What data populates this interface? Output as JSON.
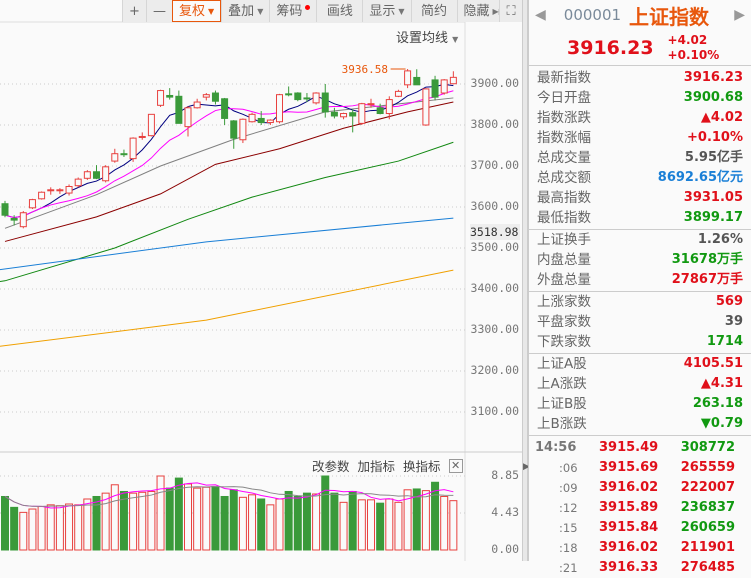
{
  "toolbar": {
    "items": [
      {
        "label": "+"
      },
      {
        "label": "—"
      },
      {
        "label": "复权",
        "dropdown": true,
        "active": true
      },
      {
        "label": "叠加",
        "dropdown": true
      },
      {
        "label": "筹码",
        "badge": "red-dot"
      },
      {
        "label": "画线"
      },
      {
        "label": "显示",
        "dropdown": true
      },
      {
        "label": "简约"
      },
      {
        "label": "隐藏",
        "icon": "double-right-arrow-icon"
      }
    ],
    "fullscreen_icon": "expand-icon"
  },
  "chart": {
    "ma_setting_label": "设置均线",
    "high_annotation": "3936.58",
    "price_axis": [
      "3900.00",
      "3800.00",
      "3700.00",
      "3600.00",
      "3500.00",
      "3400.00",
      "3300.00",
      "3200.00",
      "3100.00"
    ],
    "current_axis_value": "3518.98"
  },
  "chart_data": {
    "type": "candlestick",
    "ylim": [
      3050,
      3960
    ],
    "candles": [
      [
        3608,
        3615,
        3575,
        3580
      ],
      [
        3572,
        3580,
        3555,
        3568
      ],
      [
        3552,
        3590,
        3548,
        3586
      ],
      [
        3598,
        3620,
        3595,
        3618
      ],
      [
        3620,
        3638,
        3618,
        3636
      ],
      [
        3640,
        3648,
        3630,
        3642
      ],
      [
        3640,
        3646,
        3632,
        3642
      ],
      [
        3634,
        3655,
        3628,
        3650
      ],
      [
        3652,
        3672,
        3648,
        3668
      ],
      [
        3670,
        3690,
        3666,
        3686
      ],
      [
        3686,
        3702,
        3668,
        3670
      ],
      [
        3664,
        3702,
        3660,
        3698
      ],
      [
        3712,
        3742,
        3708,
        3730
      ],
      [
        3730,
        3740,
        3722,
        3729
      ],
      [
        3718,
        3770,
        3710,
        3768
      ],
      [
        3770,
        3782,
        3764,
        3772
      ],
      [
        3774,
        3826,
        3772,
        3826
      ],
      [
        3848,
        3886,
        3844,
        3884
      ],
      [
        3872,
        3890,
        3862,
        3868
      ],
      [
        3870,
        3884,
        3804,
        3804
      ],
      [
        3796,
        3846,
        3772,
        3842
      ],
      [
        3842,
        3864,
        3840,
        3856
      ],
      [
        3868,
        3878,
        3860,
        3874
      ],
      [
        3878,
        3884,
        3850,
        3858
      ],
      [
        3864,
        3866,
        3800,
        3816
      ],
      [
        3810,
        3812,
        3742,
        3768
      ],
      [
        3764,
        3816,
        3756,
        3814
      ],
      [
        3808,
        3830,
        3806,
        3826
      ],
      [
        3816,
        3834,
        3800,
        3806
      ],
      [
        3806,
        3814,
        3800,
        3812
      ],
      [
        3808,
        3876,
        3804,
        3874
      ],
      [
        3876,
        3894,
        3870,
        3874
      ],
      [
        3878,
        3880,
        3858,
        3862
      ],
      [
        3866,
        3878,
        3856,
        3864
      ],
      [
        3854,
        3880,
        3850,
        3878
      ],
      [
        3878,
        3900,
        3818,
        3832
      ],
      [
        3831,
        3842,
        3816,
        3822
      ],
      [
        3820,
        3830,
        3814,
        3828
      ],
      [
        3830,
        3838,
        3782,
        3822
      ],
      [
        3804,
        3854,
        3800,
        3852
      ],
      [
        3850,
        3864,
        3842,
        3852
      ],
      [
        3842,
        3852,
        3826,
        3828
      ],
      [
        3828,
        3870,
        3814,
        3862
      ],
      [
        3870,
        3886,
        3868,
        3882
      ],
      [
        3898,
        3936.58,
        3890,
        3932
      ],
      [
        3916,
        3936,
        3898,
        3898
      ],
      [
        3800,
        3890,
        3798,
        3888
      ],
      [
        3910,
        3920,
        3860,
        3868
      ],
      [
        3878,
        3912,
        3874,
        3910
      ],
      [
        3900.68,
        3931.05,
        3899.17,
        3916.23
      ]
    ],
    "ma_lines": [
      {
        "color": "#808080",
        "points": [
          [
            0,
            3548
          ],
          [
            10,
            3630
          ],
          [
            17,
            3700
          ],
          [
            25,
            3765
          ],
          [
            35,
            3832
          ],
          [
            49,
            3866
          ]
        ]
      },
      {
        "color": "#8b0000",
        "points": [
          [
            0,
            3516
          ],
          [
            10,
            3576
          ],
          [
            17,
            3632
          ],
          [
            23,
            3704
          ],
          [
            30,
            3742
          ],
          [
            37,
            3792
          ],
          [
            44,
            3832
          ],
          [
            49,
            3856
          ]
        ]
      },
      {
        "color": "#118811",
        "points": [
          [
            -12,
            3385
          ],
          [
            0,
            3420
          ],
          [
            12,
            3500
          ],
          [
            20,
            3570
          ],
          [
            27,
            3624
          ],
          [
            35,
            3672
          ],
          [
            43,
            3712
          ],
          [
            49,
            3758
          ]
        ]
      },
      {
        "color": "#1a7fd6",
        "points": [
          [
            -1,
            3446
          ],
          [
            22,
            3515
          ],
          [
            49,
            3573
          ]
        ]
      },
      {
        "color": "#f0a000",
        "points": [
          [
            -1,
            3259
          ],
          [
            22,
            3324
          ],
          [
            49,
            3446
          ]
        ]
      }
    ],
    "short_ma_colors": [
      "#000080",
      "#ff00ff"
    ],
    "volume": {
      "axis": [
        "8.85",
        "4.43",
        "0.00"
      ],
      "ylim": [
        0,
        8.85
      ],
      "values": [
        6.4,
        5.1,
        4.5,
        4.9,
        5.2,
        5.4,
        5.3,
        5.5,
        5.4,
        6.1,
        6.4,
        6.8,
        7.8,
        7.0,
        6.8,
        6.9,
        7.0,
        8.85,
        7.4,
        8.6,
        7.9,
        7.4,
        7.5,
        7.6,
        6.4,
        7.2,
        6.3,
        6.6,
        6.1,
        5.4,
        6.1,
        7.0,
        6.4,
        6.8,
        6.7,
        8.85,
        6.8,
        5.7,
        7.0,
        6.0,
        6.0,
        5.6,
        6.1,
        5.7,
        7.2,
        7.3,
        7.1,
        8.1,
        6.4,
        5.9
      ]
    },
    "colors": {
      "up": "#e8413f",
      "down": "#3a9a3a"
    }
  },
  "volume_tools": {
    "edit_params": "改参数",
    "add_indicator": "加指标",
    "switch_indicator": "换指标"
  },
  "panel": {
    "code": "000001",
    "name": "上证指数",
    "price": "3916.23",
    "change": "+4.02",
    "change_pct": "+0.10%",
    "groups": [
      [
        {
          "k": "最新指数",
          "v": "3916.23",
          "c": "red"
        },
        {
          "k": "今日开盘",
          "v": "3900.68",
          "c": "green"
        },
        {
          "k": "指数涨跌",
          "v": "▲4.02",
          "c": "red"
        },
        {
          "k": "指数涨幅",
          "v": "+0.10%",
          "c": "red"
        },
        {
          "k": "总成交量",
          "v": "5.95亿手",
          "c": "gray"
        },
        {
          "k": "总成交额",
          "v": "8692.65亿元",
          "c": "blue"
        },
        {
          "k": "最高指数",
          "v": "3931.05",
          "c": "red"
        },
        {
          "k": "最低指数",
          "v": "3899.17",
          "c": "green"
        }
      ],
      [
        {
          "k": "上证换手",
          "v": "1.26%",
          "c": "gray"
        },
        {
          "k": "内盘总量",
          "v": "31678万手",
          "c": "green"
        },
        {
          "k": "外盘总量",
          "v": "27867万手",
          "c": "red"
        }
      ],
      [
        {
          "k": "上涨家数",
          "v": "569",
          "c": "red"
        },
        {
          "k": "平盘家数",
          "v": "39",
          "c": "gray"
        },
        {
          "k": "下跌家数",
          "v": "1714",
          "c": "green"
        }
      ],
      [
        {
          "k": "上证A股",
          "v": "4105.51",
          "c": "red"
        },
        {
          "k": "上A涨跌",
          "v": "▲4.31",
          "c": "red"
        },
        {
          "k": "上证B股",
          "v": "263.18",
          "c": "green"
        },
        {
          "k": "上B涨跌",
          "v": "▼0.79",
          "c": "green"
        }
      ]
    ],
    "trades": [
      {
        "t": "14:56",
        "p": "3915.49",
        "q": "308772",
        "c": "green"
      },
      {
        "t": ":06",
        "p": "3915.69",
        "q": "265559",
        "c": "red"
      },
      {
        "t": ":09",
        "p": "3916.02",
        "q": "222007",
        "c": "red"
      },
      {
        "t": ":12",
        "p": "3915.89",
        "q": "236837",
        "c": "green"
      },
      {
        "t": ":15",
        "p": "3915.84",
        "q": "260659",
        "c": "green"
      },
      {
        "t": ":18",
        "p": "3916.02",
        "q": "211901",
        "c": "red"
      },
      {
        "t": ":21",
        "p": "3916.33",
        "q": "276485",
        "c": "red"
      }
    ]
  }
}
